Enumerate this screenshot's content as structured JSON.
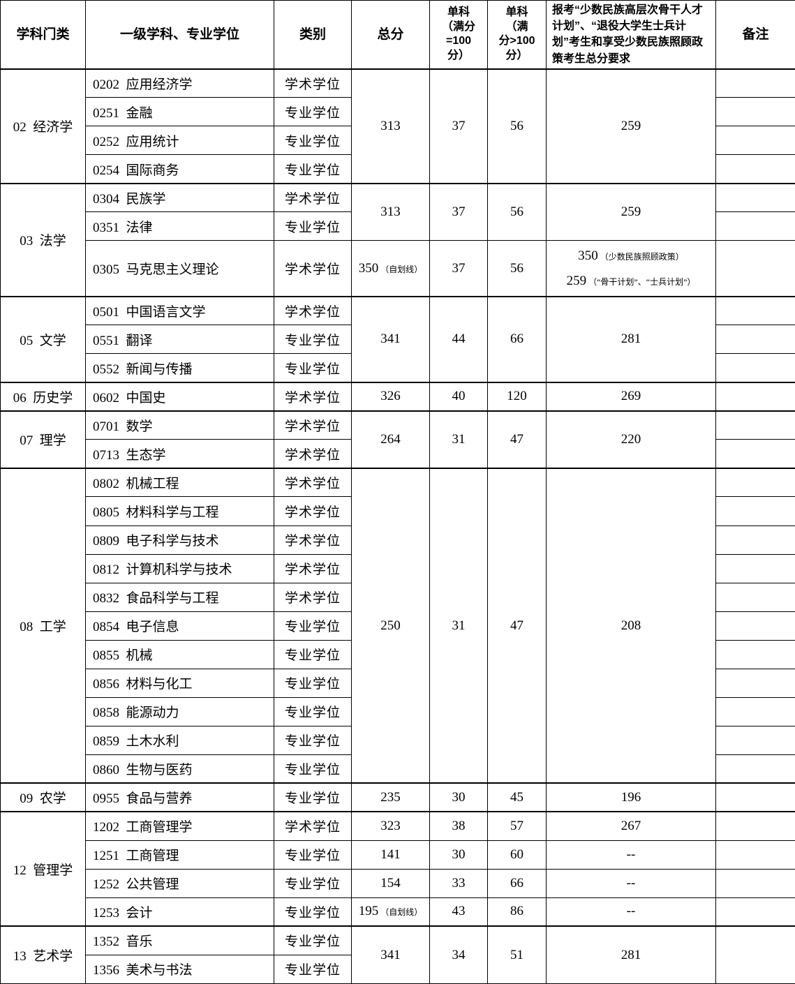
{
  "columns": [
    {
      "label": "学科门类"
    },
    {
      "label": "一级学科、专业学位"
    },
    {
      "label": "类别"
    },
    {
      "label": "总分"
    },
    {
      "label": "单科\n（满分\n=100\n分）"
    },
    {
      "label": "单科\n（满\n分>100\n分）"
    },
    {
      "label": "报考“少数民族高层次骨干人才计划”、“退役大学生士兵计划”考生和享受少数民族照顾政策考生总分要求"
    },
    {
      "label": "备注"
    }
  ],
  "blocks": [
    {
      "category": "02  经济学",
      "rows": [
        {
          "discipline": "0202  应用经济学",
          "type": "学术学位"
        },
        {
          "discipline": "0251  金融",
          "type": "专业学位"
        },
        {
          "discipline": "0252  应用统计",
          "type": "专业学位"
        },
        {
          "discipline": "0254  国际商务",
          "type": "专业学位"
        }
      ],
      "scores": [
        {
          "span": 4,
          "total": "313",
          "sub100": "37",
          "subgt100": "56",
          "special": "259"
        }
      ],
      "remark_merged": false
    },
    {
      "category": "03  法学",
      "rows": [
        {
          "discipline": "0304  民族学",
          "type": "学术学位"
        },
        {
          "discipline": "0351  法律",
          "type": "专业学位"
        },
        {
          "discipline": "0305  马克思主义理论",
          "type": "学术学位",
          "tall": true
        }
      ],
      "scores": [
        {
          "span": 2,
          "total": "313",
          "sub100": "37",
          "subgt100": "56",
          "special": "259"
        },
        {
          "span": 1,
          "total": "350",
          "total_note": "（自划线）",
          "sub100": "37",
          "subgt100": "56",
          "special_lines": [
            {
              "num": "350",
              "note": "（少数民族照顾政策）"
            },
            {
              "num": "259",
              "note": "（“骨干计划”、“士兵计划”）"
            }
          ]
        }
      ],
      "remark_merged": false
    },
    {
      "category": "05  文学",
      "rows": [
        {
          "discipline": "0501  中国语言文学",
          "type": "学术学位"
        },
        {
          "discipline": "0551  翻译",
          "type": "专业学位"
        },
        {
          "discipline": "0552  新闻与传播",
          "type": "专业学位"
        }
      ],
      "scores": [
        {
          "span": 3,
          "total": "341",
          "sub100": "44",
          "subgt100": "66",
          "special": "281"
        }
      ],
      "remark_merged": false
    },
    {
      "category": "06  历史学",
      "rows": [
        {
          "discipline": "0602  中国史",
          "type": "学术学位"
        }
      ],
      "scores": [
        {
          "span": 1,
          "total": "326",
          "sub100": "40",
          "subgt100": "120",
          "special": "269"
        }
      ],
      "remark_merged": false
    },
    {
      "category": "07  理学",
      "rows": [
        {
          "discipline": "0701  数学",
          "type": "学术学位"
        },
        {
          "discipline": "0713  生态学",
          "type": "学术学位"
        }
      ],
      "scores": [
        {
          "span": 2,
          "total": "264",
          "sub100": "31",
          "subgt100": "47",
          "special": "220"
        }
      ],
      "remark_merged": false
    },
    {
      "category": "08  工学",
      "rows": [
        {
          "discipline": "0802  机械工程",
          "type": "学术学位"
        },
        {
          "discipline": "0805  材料科学与工程",
          "type": "学术学位"
        },
        {
          "discipline": "0809  电子科学与技术",
          "type": "学术学位"
        },
        {
          "discipline": "0812  计算机科学与技术",
          "type": "学术学位"
        },
        {
          "discipline": "0832  食品科学与工程",
          "type": "学术学位"
        },
        {
          "discipline": "0854  电子信息",
          "type": "专业学位"
        },
        {
          "discipline": "0855  机械",
          "type": "专业学位"
        },
        {
          "discipline": "0856  材料与化工",
          "type": "专业学位"
        },
        {
          "discipline": "0858  能源动力",
          "type": "专业学位"
        },
        {
          "discipline": "0859  土木水利",
          "type": "专业学位"
        },
        {
          "discipline": "0860  生物与医药",
          "type": "专业学位"
        }
      ],
      "scores": [
        {
          "span": 11,
          "total": "250",
          "sub100": "31",
          "subgt100": "47",
          "special": "208"
        }
      ],
      "remark_merged": false
    },
    {
      "category": "09  农学",
      "rows": [
        {
          "discipline": "0955  食品与营养",
          "type": "专业学位"
        }
      ],
      "scores": [
        {
          "span": 1,
          "total": "235",
          "sub100": "30",
          "subgt100": "45",
          "special": "196"
        }
      ],
      "remark_merged": false
    },
    {
      "category": "12  管理学",
      "rows": [
        {
          "discipline": "1202  工商管理学",
          "type": "学术学位"
        },
        {
          "discipline": "1251  工商管理",
          "type": "专业学位"
        },
        {
          "discipline": "1252  公共管理",
          "type": "专业学位"
        },
        {
          "discipline": "1253  会计",
          "type": "专业学位"
        }
      ],
      "scores": [
        {
          "span": 1,
          "total": "323",
          "sub100": "38",
          "subgt100": "57",
          "special": "267"
        },
        {
          "span": 1,
          "total": "141",
          "sub100": "30",
          "subgt100": "60",
          "special": "--"
        },
        {
          "span": 1,
          "total": "154",
          "sub100": "33",
          "subgt100": "66",
          "special": "--"
        },
        {
          "span": 1,
          "total": "195",
          "total_note": "（自划线）",
          "sub100": "43",
          "subgt100": "86",
          "special": "--"
        }
      ],
      "remark_merged": false
    },
    {
      "category": "13  艺术学",
      "rows": [
        {
          "discipline": "1352  音乐",
          "type": "专业学位"
        },
        {
          "discipline": "1356  美术与书法",
          "type": "专业学位"
        }
      ],
      "scores": [
        {
          "span": 2,
          "total": "341",
          "sub100": "34",
          "subgt100": "51",
          "special": "281"
        }
      ],
      "remark_merged": true
    }
  ]
}
